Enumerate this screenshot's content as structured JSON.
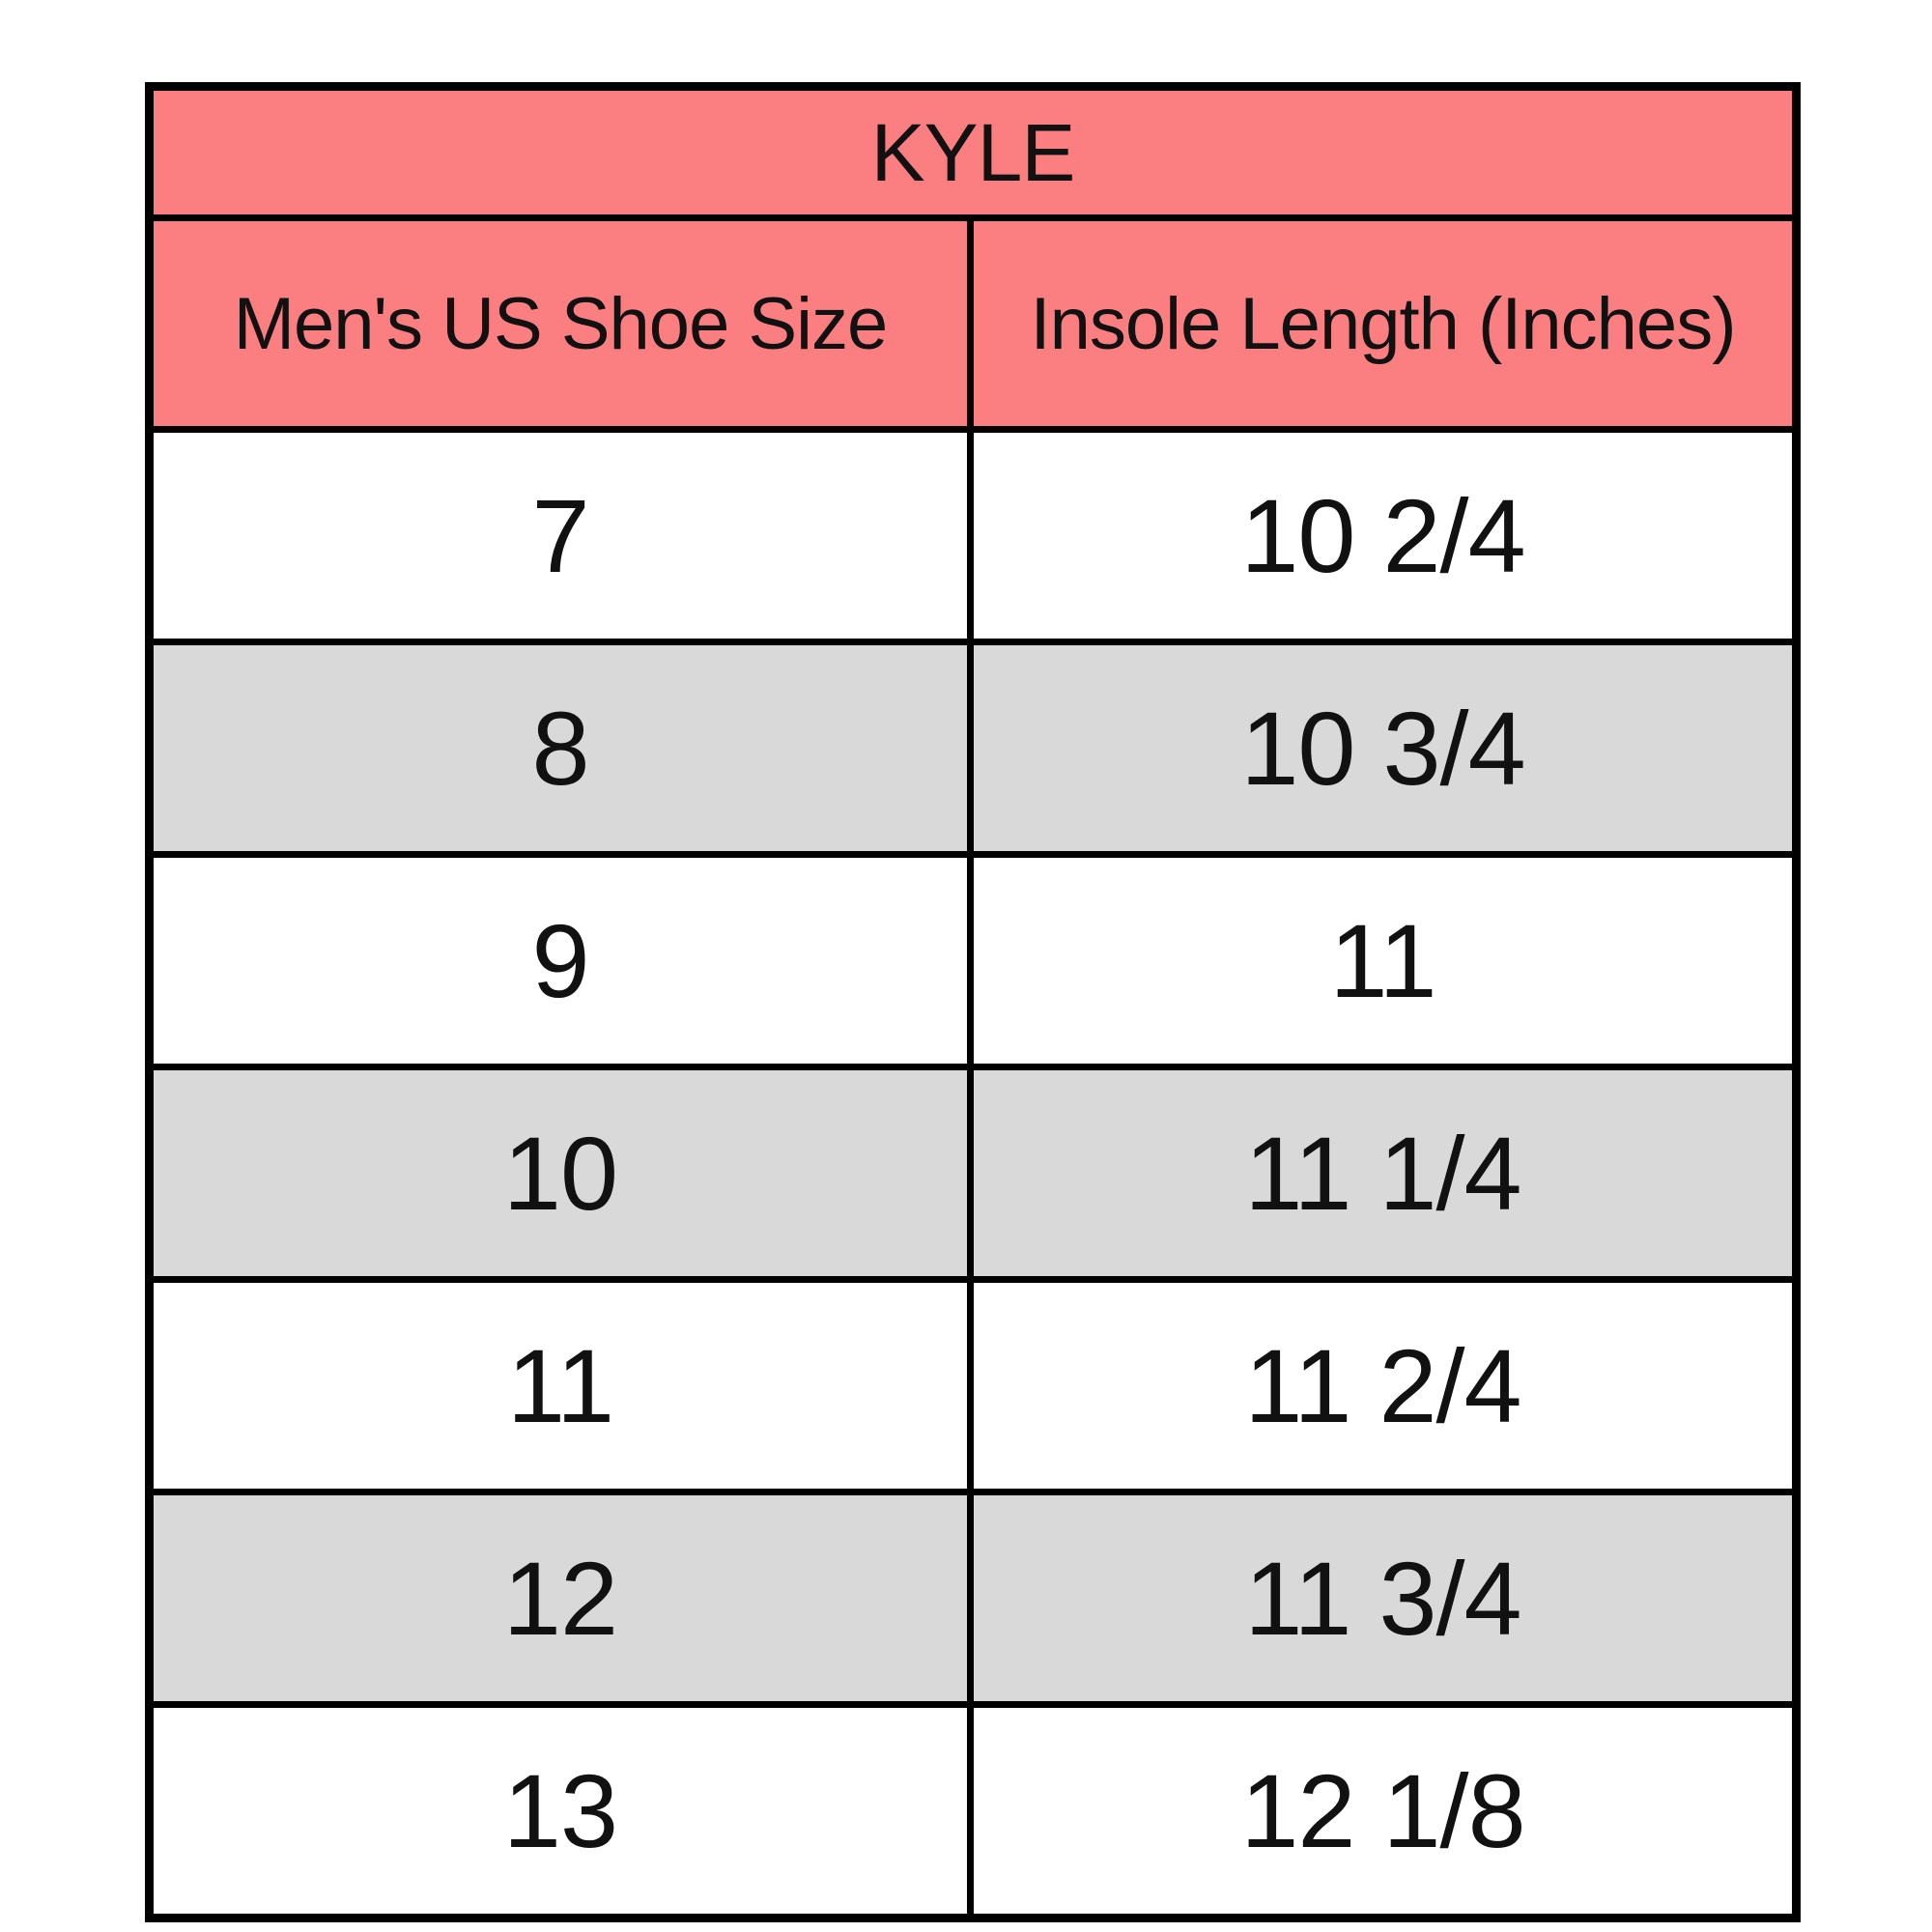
{
  "chart_data": {
    "type": "table",
    "title": "KYLE",
    "columns": [
      "Men's US Shoe Size",
      "Insole Length (Inches)"
    ],
    "rows": [
      [
        "7",
        "10 2/4"
      ],
      [
        "8",
        "10 3/4"
      ],
      [
        "9",
        "11"
      ],
      [
        "10",
        "11 1/4"
      ],
      [
        "11",
        "11 2/4"
      ],
      [
        "12",
        "11 3/4"
      ],
      [
        "13",
        "12 1/8"
      ]
    ]
  },
  "colors": {
    "header_bg": "#FB7E81",
    "alt_row_bg": "#D9D9D9",
    "row_bg": "#FFFFFF",
    "grid_line": "#000000",
    "text": "#111111"
  }
}
